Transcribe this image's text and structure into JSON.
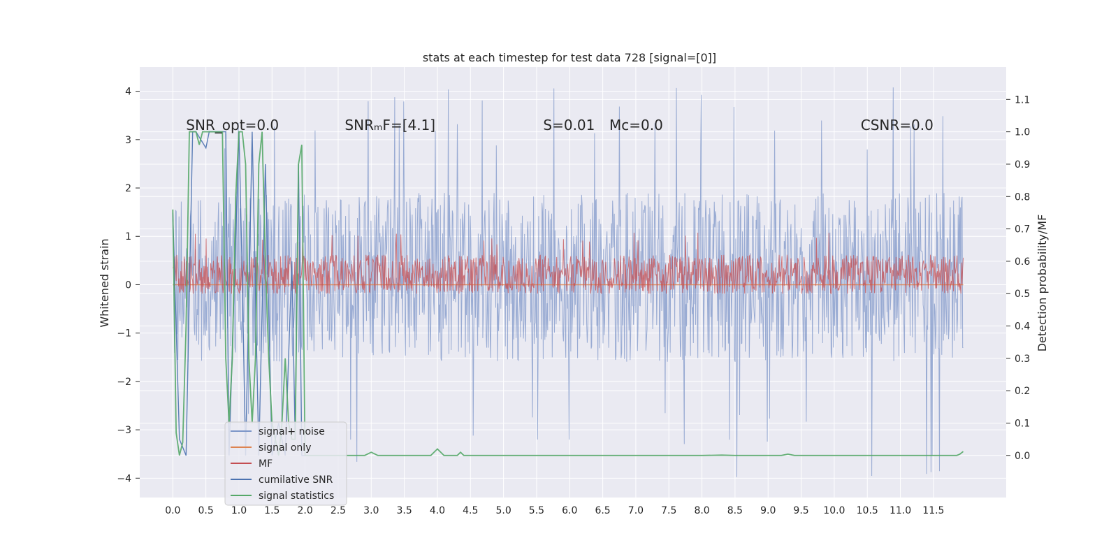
{
  "chart_data": {
    "type": "line",
    "title": "stats at each timestep for test data 728 [signal=[0]]",
    "ylabel_left": "Whitened strain",
    "ylabel_right": "Detection probability/MF",
    "xlim": [
      -0.5,
      12.6
    ],
    "ylim_left": [
      -4.4,
      4.5
    ],
    "ylim_right": [
      -0.13,
      1.2
    ],
    "x_ticks": [
      0.0,
      0.5,
      1.0,
      1.5,
      2.0,
      2.5,
      3.0,
      3.5,
      4.0,
      4.5,
      5.0,
      5.5,
      6.0,
      6.5,
      7.0,
      7.5,
      8.0,
      8.5,
      9.0,
      9.5,
      10.0,
      10.5,
      11.0,
      11.5
    ],
    "x_tick_labels": [
      "0.0",
      "0.5",
      "1.0",
      "1.5",
      "2.0",
      "2.5",
      "3.0",
      "3.5",
      "4.0",
      "4.5",
      "5.0",
      "5.5",
      "6.0",
      "6.5",
      "7.0",
      "7.5",
      "8.0",
      "8.5",
      "9.0",
      "9.5",
      "10.0",
      "10.5",
      "11.0",
      "11.5"
    ],
    "y_ticks_left": [
      -4,
      -3,
      -2,
      -1,
      0,
      1,
      2,
      3,
      4
    ],
    "y_tick_labels_left": [
      "−4",
      "−3",
      "−2",
      "−1",
      "0",
      "1",
      "2",
      "3",
      "4"
    ],
    "y_ticks_right": [
      0.0,
      0.1,
      0.2,
      0.3,
      0.4,
      0.5,
      0.6,
      0.7,
      0.8,
      0.9,
      1.0,
      1.1
    ],
    "y_tick_labels_right": [
      "0.0",
      "0.1",
      "0.2",
      "0.3",
      "0.4",
      "0.5",
      "0.6",
      "0.7",
      "0.8",
      "0.9",
      "1.0",
      "1.1"
    ],
    "grid": true,
    "legend_position": "lower-left",
    "annotations": [
      {
        "text": "SNR_opt=0.0",
        "x": 0.2,
        "y": 3.2,
        "axis": "left"
      },
      {
        "text": "SNRₘF=[4.1]",
        "x": 2.6,
        "y": 3.2,
        "axis": "left"
      },
      {
        "text": "S=0.01",
        "x": 5.6,
        "y": 3.2,
        "axis": "left"
      },
      {
        "text": "Mᴄ=0.0",
        "x": 6.6,
        "y": 3.2,
        "axis": "left"
      },
      {
        "text": "CSNR=0.0",
        "x": 10.4,
        "y": 3.2,
        "axis": "left"
      }
    ],
    "series": [
      {
        "name": "signal+ noise",
        "color": "#7d96c8",
        "axis": "left",
        "kind": "noise",
        "range_x": [
          0.0,
          11.95
        ],
        "y_low_typ": -1.6,
        "y_high_typ": 1.9,
        "y_min": -4.0,
        "y_max": 4.1
      },
      {
        "name": "signal only",
        "color": "#dd8452",
        "axis": "left",
        "kind": "flat",
        "values_x": [
          0.0,
          11.95
        ],
        "values_y": [
          0.0,
          0.0
        ]
      },
      {
        "name": "MF",
        "color": "#c44e52",
        "axis": "right",
        "kind": "noise",
        "range_x": [
          0.0,
          11.95
        ],
        "y_low_typ": 0.5,
        "y_high_typ": 0.62,
        "y_min": 0.5,
        "y_max": 0.69
      },
      {
        "name": "cumilative SNR",
        "color": "#4c72b0",
        "axis": "right",
        "kind": "line",
        "x": [
          0.0,
          0.1,
          0.2,
          0.3,
          0.35,
          0.5,
          0.55,
          0.8,
          0.85,
          1.0,
          1.05,
          1.1,
          1.2,
          1.3,
          1.4,
          1.5,
          1.6,
          1.7,
          1.8,
          1.85,
          1.9,
          1.95,
          2.0
        ],
        "y": [
          0.75,
          0.05,
          0.0,
          1.0,
          1.0,
          0.95,
          1.0,
          1.0,
          0.0,
          1.0,
          0.55,
          0.0,
          1.0,
          0.0,
          0.9,
          0.0,
          0.1,
          0.0,
          0.6,
          0.05,
          0.9,
          0.0,
          0.0
        ]
      },
      {
        "name": "signal statistics",
        "color": "#55a868",
        "axis": "right",
        "kind": "line",
        "x": [
          0.0,
          0.05,
          0.1,
          0.15,
          0.2,
          0.25,
          0.3,
          0.35,
          0.4,
          0.45,
          0.5,
          0.55,
          0.6,
          0.65,
          0.7,
          0.75,
          0.8,
          0.85,
          0.9,
          0.95,
          1.0,
          1.05,
          1.1,
          1.15,
          1.2,
          1.25,
          1.3,
          1.35,
          1.4,
          1.45,
          1.5,
          1.55,
          1.6,
          1.65,
          1.7,
          1.75,
          1.8,
          1.85,
          1.9,
          1.95,
          2.0,
          2.5,
          2.9,
          3.0,
          3.1,
          3.5,
          3.9,
          4.0,
          4.1,
          4.3,
          4.35,
          4.4,
          4.6,
          5.0,
          6.0,
          7.0,
          8.0,
          8.3,
          8.5,
          9.0,
          9.2,
          9.3,
          9.4,
          10.0,
          10.5,
          11.0,
          11.5,
          11.85,
          11.9,
          11.95
        ],
        "y": [
          0.76,
          0.07,
          0.0,
          0.04,
          0.4,
          1.0,
          1.0,
          1.0,
          0.96,
          1.0,
          1.0,
          1.0,
          1.0,
          1.0,
          1.0,
          1.0,
          0.3,
          0.1,
          0.3,
          0.8,
          1.0,
          1.0,
          0.9,
          0.3,
          0.1,
          0.3,
          0.9,
          1.0,
          0.6,
          0.3,
          0.1,
          0.05,
          0.0,
          0.1,
          0.3,
          0.1,
          0.05,
          0.05,
          0.9,
          0.96,
          0.0,
          0.0,
          0.0,
          0.01,
          0.0,
          0.0,
          0.0,
          0.02,
          0.0,
          0.0,
          0.01,
          0.0,
          0.0,
          0.0,
          0.0,
          0.0,
          0.0,
          0.001,
          0.0,
          0.0,
          0.0,
          0.004,
          0.0,
          0.0,
          0.0,
          0.0,
          0.0,
          0.0,
          0.004,
          0.012
        ]
      }
    ]
  }
}
